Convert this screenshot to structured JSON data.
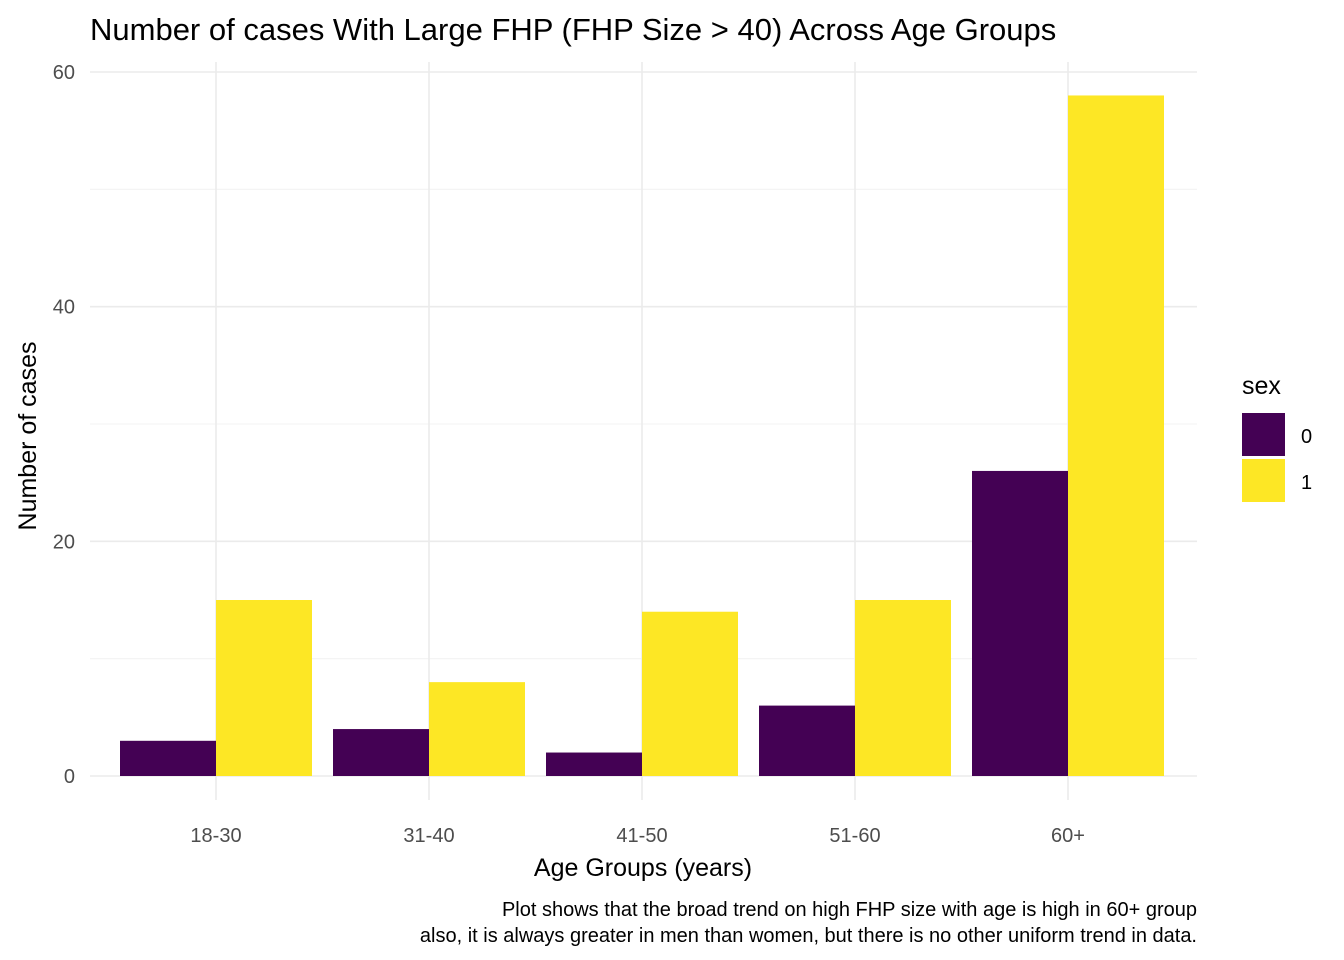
{
  "chart_data": {
    "type": "bar",
    "title": "Number of cases With Large FHP (FHP Size > 40) Across Age Groups",
    "xlabel": "Age Groups (years)",
    "ylabel": "Number of cases",
    "categories": [
      "18-30",
      "31-40",
      "41-50",
      "51-60",
      "60+"
    ],
    "series": [
      {
        "name": "0",
        "color": "#440154",
        "values": [
          3,
          4,
          2,
          6,
          26
        ]
      },
      {
        "name": "1",
        "color": "#FDE725",
        "values": [
          15,
          8,
          14,
          15,
          58
        ]
      }
    ],
    "ylim": [
      0,
      60
    ],
    "yticks": [
      "0",
      "20",
      "40",
      "60"
    ],
    "grid": true,
    "legend": {
      "title": "sex",
      "position": "right"
    },
    "caption_lines": [
      "Plot shows that the broad trend on high FHP size with age is high in 60+ group",
      "also, it is always greater in men than women, but there is no other uniform trend in data."
    ]
  }
}
